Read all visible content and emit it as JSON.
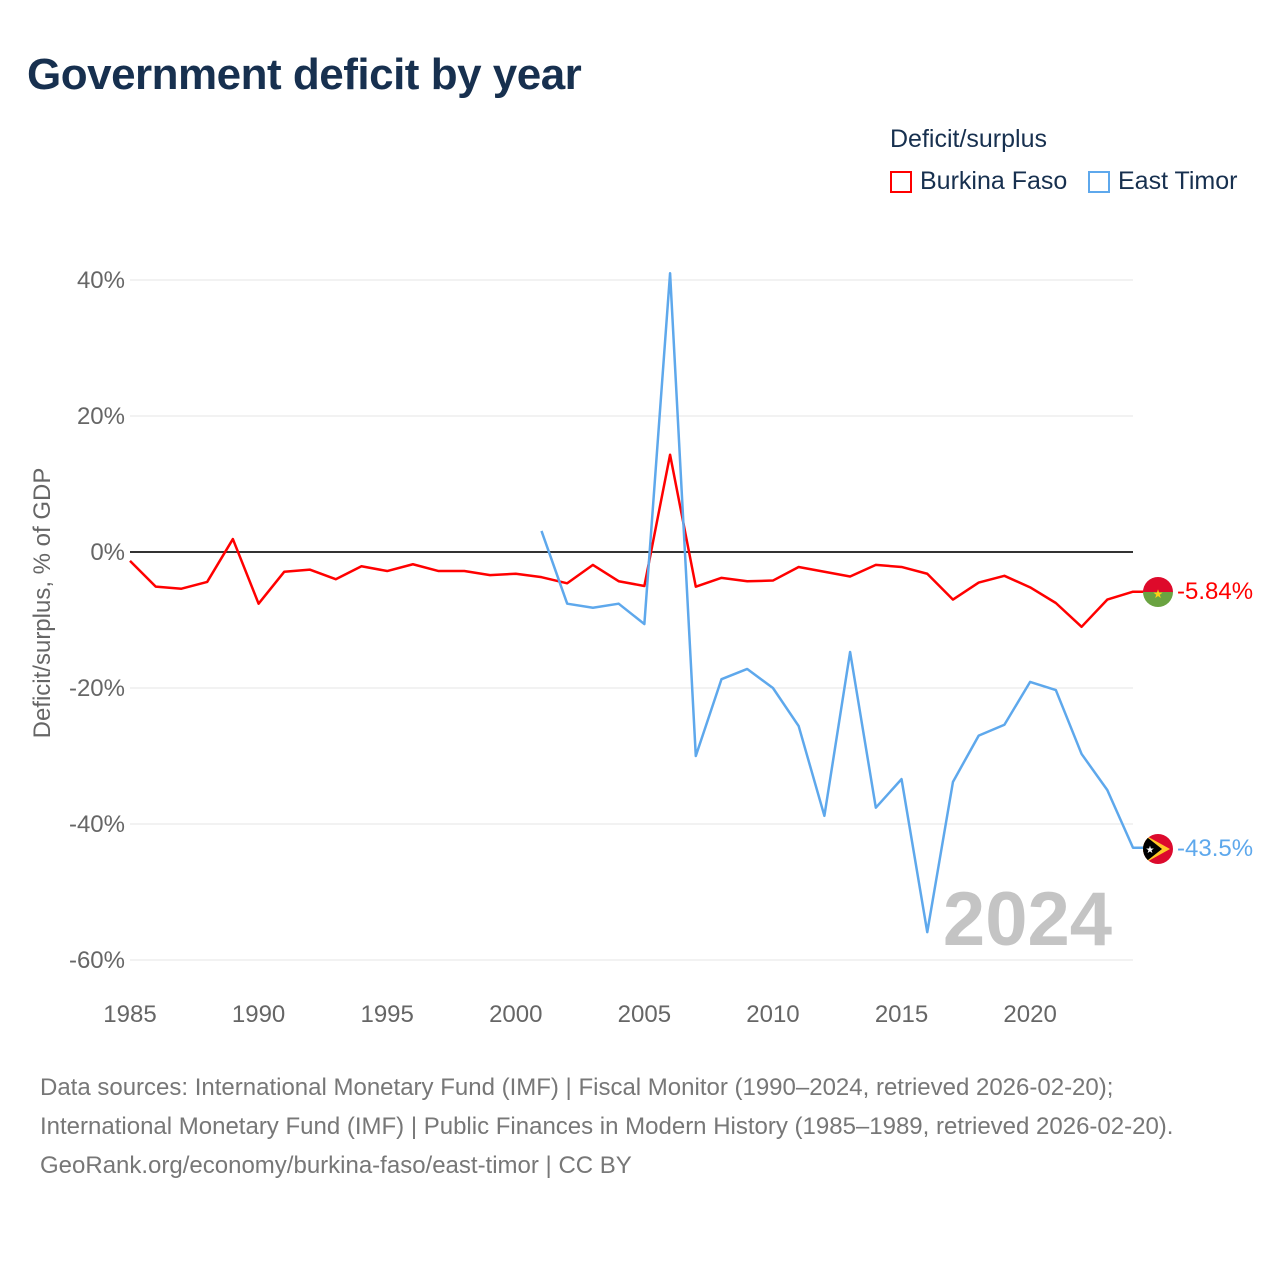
{
  "title": "Government deficit by year",
  "legend": {
    "title": "Deficit/surplus"
  },
  "footer": {
    "sources": "Data sources: International Monetary Fund (IMF) | Fiscal Monitor (1990–2024, retrieved 2026-02-20); International Monetary Fund (IMF) | Public Finances in Modern History (1985–1989, retrieved 2026-02-20).",
    "credit": "GeoRank.org/economy/burkina-faso/east-timor | CC BY"
  },
  "chart_data": {
    "type": "line",
    "title": "Government deficit by year",
    "ylabel": "Deficit/surplus, % of GDP",
    "xlabel": "",
    "xlim": [
      1985,
      2024
    ],
    "ylim": [
      -60,
      40
    ],
    "xticks": [
      1985,
      1990,
      1995,
      2000,
      2005,
      2010,
      2015,
      2020
    ],
    "yticks": [
      40,
      20,
      0,
      -20,
      -40,
      -60
    ],
    "ytick_labels": [
      "40%",
      "20%",
      "0%",
      "-20%",
      "-40%",
      "-60%"
    ],
    "year_label": "2024",
    "legend_position": "top-right",
    "series": [
      {
        "name": "Burkina Faso",
        "color": "#ff0000",
        "end_label": "-5.84%",
        "x": [
          1985,
          1986,
          1987,
          1988,
          1989,
          1990,
          1991,
          1992,
          1993,
          1994,
          1995,
          1996,
          1997,
          1998,
          1999,
          2000,
          2001,
          2002,
          2003,
          2004,
          2005,
          2006,
          2007,
          2008,
          2009,
          2010,
          2011,
          2012,
          2013,
          2014,
          2015,
          2016,
          2017,
          2018,
          2019,
          2020,
          2021,
          2022,
          2023,
          2024
        ],
        "values": [
          -1.3,
          -5.1,
          -5.4,
          -4.4,
          1.9,
          -7.6,
          -2.9,
          -2.6,
          -4.0,
          -2.1,
          -2.8,
          -1.8,
          -2.8,
          -2.8,
          -3.4,
          -3.2,
          -3.7,
          -4.6,
          -1.9,
          -4.3,
          -5.0,
          14.3,
          -5.1,
          -3.8,
          -4.3,
          -4.2,
          -2.2,
          -2.9,
          -3.6,
          -1.9,
          -2.2,
          -3.2,
          -7.0,
          -4.5,
          -3.5,
          -5.2,
          -7.5,
          -11.0,
          -7.0,
          -5.84
        ]
      },
      {
        "name": "East Timor",
        "color": "#5ea8ec",
        "end_label": "-43.5%",
        "x": [
          2001,
          2002,
          2003,
          2004,
          2005,
          2006,
          2007,
          2008,
          2009,
          2010,
          2011,
          2012,
          2013,
          2014,
          2015,
          2016,
          2017,
          2018,
          2019,
          2020,
          2021,
          2022,
          2023,
          2024
        ],
        "values": [
          3.1,
          -7.6,
          -8.2,
          -7.6,
          -10.6,
          41.0,
          -30.0,
          -18.7,
          -17.2,
          -20.0,
          -25.6,
          -38.8,
          -14.7,
          -37.6,
          -33.4,
          -55.9,
          -33.8,
          -27.0,
          -25.4,
          -19.1,
          -20.3,
          -29.7,
          -35.0,
          -43.5
        ]
      }
    ]
  }
}
